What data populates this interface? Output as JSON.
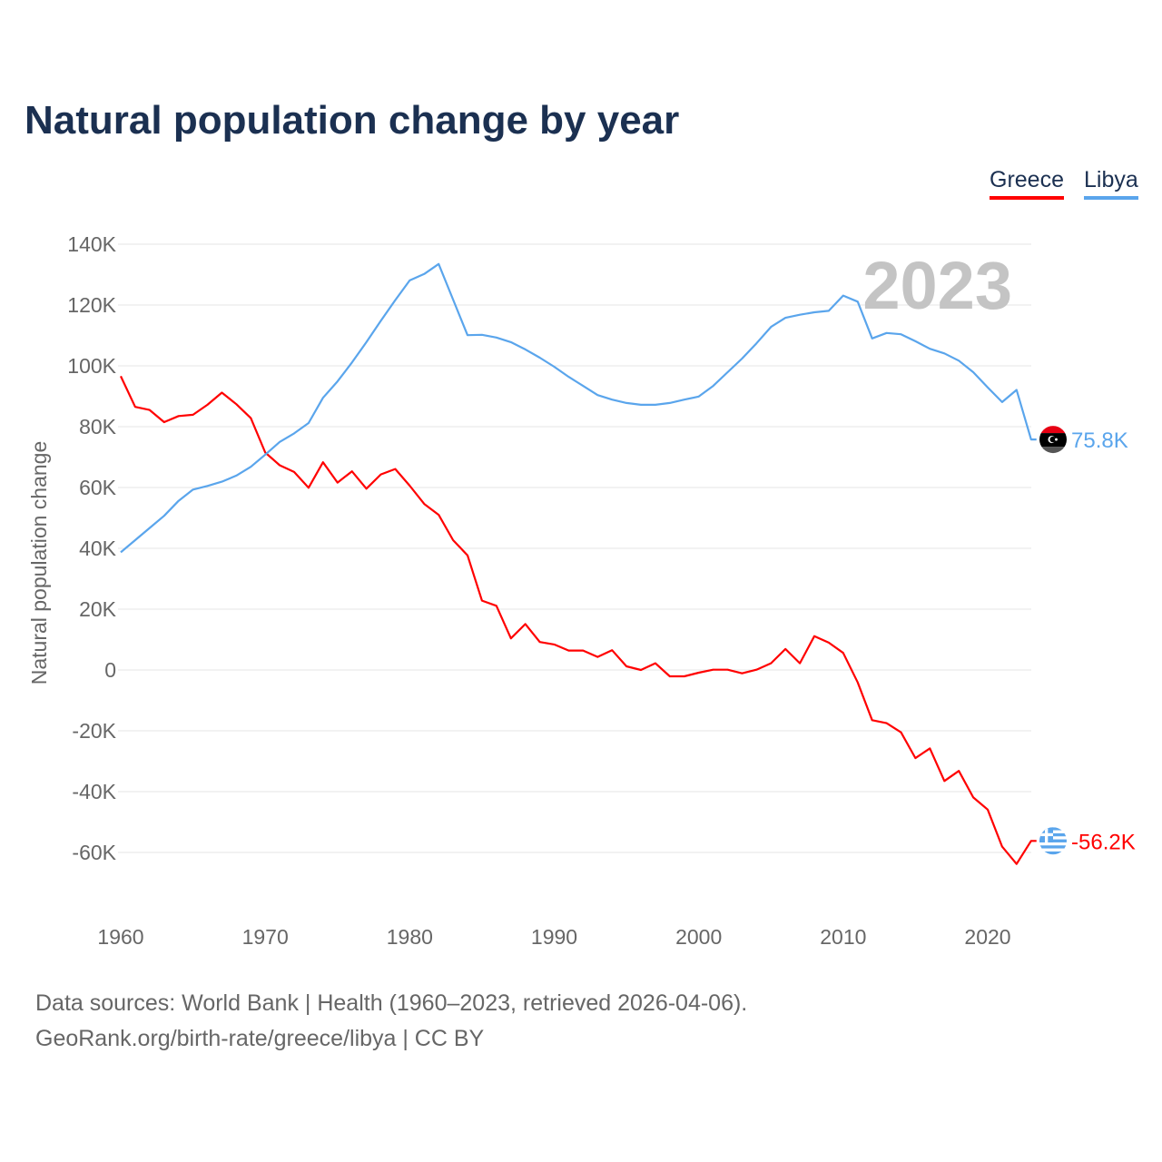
{
  "title": "Natural population change by year",
  "legend": [
    {
      "name": "Greece",
      "color": "#ff0000"
    },
    {
      "name": "Libya",
      "color": "#5aa5ec"
    }
  ],
  "year_watermark": "2023",
  "footer": {
    "line1": "Data sources: World Bank | Health (1960–2023, retrieved 2026-04-06).",
    "line2": "GeoRank.org/birth-rate/greece/libya | CC BY"
  },
  "chart_data": {
    "type": "line",
    "title": "Natural population change by year",
    "xlabel": "",
    "ylabel": "Natural population change",
    "xlim": [
      1960,
      2023
    ],
    "ylim": [
      -70000,
      140000
    ],
    "x_ticks": [
      1960,
      1970,
      1980,
      1990,
      2000,
      2010,
      2020
    ],
    "x_tick_labels": [
      "1960",
      "1970",
      "1980",
      "1990",
      "2000",
      "2010",
      "2020"
    ],
    "y_ticks": [
      140000,
      120000,
      100000,
      80000,
      60000,
      40000,
      20000,
      0,
      -20000,
      -40000,
      -60000
    ],
    "y_tick_labels": [
      "140K",
      "120K",
      "100K",
      "80K",
      "60K",
      "40K",
      "20K",
      "0",
      "-20K",
      "-40K",
      "-60K"
    ],
    "grid": true,
    "legend_position": "top-right",
    "x_start": 1960,
    "series": [
      {
        "name": "Greece",
        "color": "#ff0000",
        "end_label": "-56.2K",
        "flag": "greece-flag",
        "values": [
          96600,
          86500,
          85500,
          81500,
          83500,
          83900,
          87200,
          91200,
          87400,
          82800,
          71500,
          67300,
          65100,
          59900,
          68300,
          61600,
          65300,
          59600,
          64300,
          66100,
          60600,
          54600,
          51000,
          42700,
          37700,
          22800,
          21100,
          10400,
          15100,
          9200,
          8400,
          6400,
          6400,
          4300,
          6500,
          1200,
          0,
          2200,
          -2100,
          -2100,
          -900,
          100,
          100,
          -1100,
          100,
          2200,
          6900,
          2200,
          11100,
          9000,
          5600,
          -4100,
          -16500,
          -17500,
          -20500,
          -29000,
          -25800,
          -36500,
          -33200,
          -41900,
          -45900,
          -58100,
          -63800,
          -56200
        ]
      },
      {
        "name": "Libya",
        "color": "#5aa5ec",
        "end_label": "75.8K",
        "flag": "libya-flag",
        "values": [
          38700,
          42700,
          46700,
          50700,
          55600,
          59300,
          60500,
          61900,
          63900,
          66800,
          70800,
          75000,
          77800,
          81200,
          89500,
          94900,
          101100,
          107800,
          114800,
          121600,
          128100,
          130200,
          133500,
          121800,
          110100,
          110200,
          109300,
          107800,
          105400,
          102700,
          99700,
          96400,
          93400,
          90400,
          88900,
          87800,
          87200,
          87200,
          87800,
          88900,
          89900,
          93400,
          97900,
          102400,
          107400,
          112800,
          115800,
          116800,
          117600,
          118100,
          123100,
          121100,
          109000,
          110800,
          110400,
          108100,
          105600,
          104100,
          101700,
          97900,
          92900,
          88100,
          92100,
          75800
        ]
      }
    ]
  }
}
